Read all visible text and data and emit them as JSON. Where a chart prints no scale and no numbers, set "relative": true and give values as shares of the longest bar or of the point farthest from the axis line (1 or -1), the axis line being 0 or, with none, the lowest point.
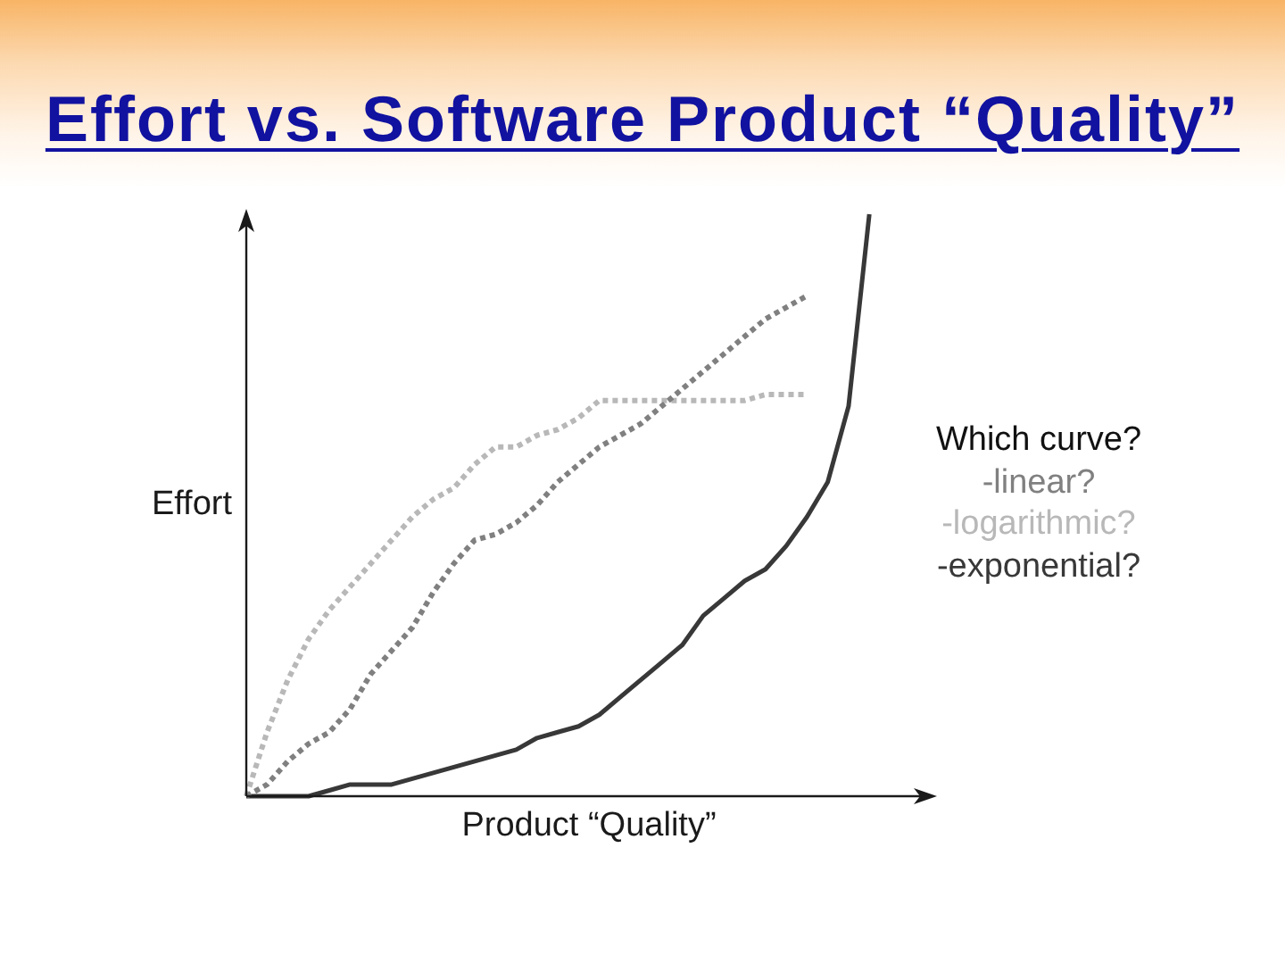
{
  "chart_data": {
    "type": "line",
    "title": "Effort vs. Software Product “Quality”",
    "xlabel": "Product “Quality”",
    "ylabel": "Effort",
    "legend_title": "Which curve?",
    "legend": "right",
    "relative": true,
    "tick_labels": false,
    "marker": "none",
    "categories": [
      null,
      null,
      null,
      null,
      null,
      null,
      null,
      null,
      null,
      null,
      null,
      null,
      null,
      null,
      null,
      null,
      null,
      null,
      null,
      null,
      null,
      null,
      null,
      null,
      null,
      null,
      null,
      null,
      null,
      null,
      null,
      null,
      null,
      null
    ],
    "series": [
      {
        "name": "-linear?",
        "color": "#808080",
        "line_style": "dotted",
        "values": [
          0,
          0.02,
          0.06,
          0.09,
          0.11,
          0.15,
          0.21,
          0.25,
          0.29,
          0.35,
          0.4,
          0.44,
          0.45,
          0.47,
          0.5,
          0.54,
          0.57,
          0.6,
          0.62,
          0.64,
          0.67,
          0.7,
          0.73,
          0.76,
          0.79,
          0.82,
          0.84,
          0.86,
          null,
          null,
          null,
          null,
          null,
          null
        ]
      },
      {
        "name": "-logarithmic?",
        "color": "#b8b8b8",
        "line_style": "dotted",
        "values": [
          0,
          0.11,
          0.2,
          0.27,
          0.32,
          0.36,
          0.4,
          0.44,
          0.48,
          0.51,
          0.53,
          0.57,
          0.6,
          0.6,
          0.62,
          0.63,
          0.65,
          0.68,
          0.68,
          0.68,
          0.68,
          0.68,
          0.68,
          0.68,
          0.68,
          0.69,
          0.69,
          0.69,
          null,
          null,
          null,
          null,
          null,
          null
        ]
      },
      {
        "name": "-exponential?",
        "color": "#383838",
        "line_style": "solid",
        "values": [
          0,
          0,
          0,
          0,
          0.01,
          0.02,
          0.02,
          0.02,
          0.03,
          0.04,
          0.05,
          0.06,
          0.07,
          0.08,
          0.1,
          0.11,
          0.12,
          0.14,
          0.17,
          0.2,
          0.23,
          0.26,
          0.31,
          0.34,
          0.37,
          0.39,
          0.43,
          0.48,
          0.54,
          0.67,
          1,
          null,
          null,
          null
        ]
      }
    ]
  }
}
